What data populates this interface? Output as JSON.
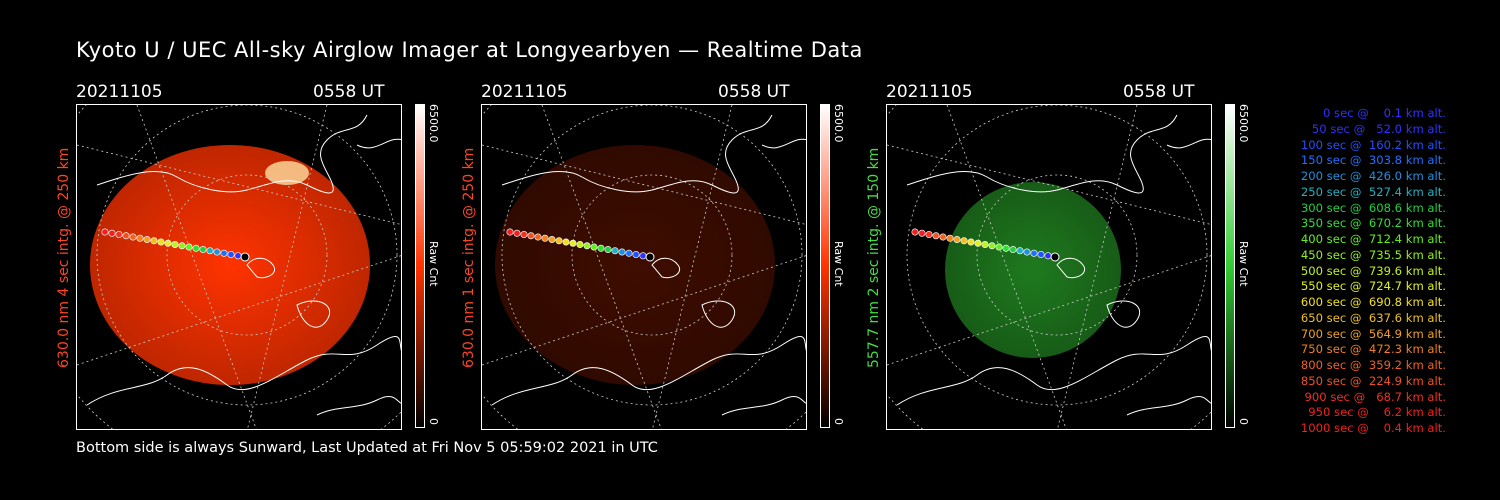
{
  "title": "Kyoto U / UEC All-sky Airglow Imager at Longyearbyen — Realtime Data",
  "footer": "Bottom side is always Sunward, Last Updated at Fri Nov  5 05:59:02 2021 in UTC",
  "panels": [
    {
      "date": "20211105",
      "time": "0558 UT",
      "ylabel": "630.0 nm 4 sec intg. @ 250 km",
      "cbar_max": "6500.0",
      "cbar_min": "0",
      "cbar_unit": "Raw Cnt",
      "color": "#ff3300",
      "brightness": 1.0
    },
    {
      "date": "20211105",
      "time": "0558 UT",
      "ylabel": "630.0 nm 1 sec intg. @ 250 km",
      "cbar_max": "6500.0",
      "cbar_min": "0",
      "cbar_unit": "Raw Cnt",
      "color": "#ff3300",
      "brightness": 0.25
    },
    {
      "date": "20211105",
      "time": "0558 UT",
      "ylabel": "557.7 nm 2 sec intg. @ 150 km",
      "cbar_max": "6500.0",
      "cbar_min": "0",
      "cbar_unit": "Raw Cnt",
      "color": "#33cc33",
      "brightness": 0.6
    }
  ],
  "legend": [
    {
      "text": "   0 sec @    0.1 km alt.",
      "color": "#3030ff"
    },
    {
      "text": "  50 sec @   52.0 km alt.",
      "color": "#3030ff"
    },
    {
      "text": " 100 sec @  160.2 km alt.",
      "color": "#2050ff"
    },
    {
      "text": " 150 sec @  303.8 km alt.",
      "color": "#2070ff"
    },
    {
      "text": " 200 sec @  426.0 km alt.",
      "color": "#2090e0"
    },
    {
      "text": " 250 sec @  527.4 km alt.",
      "color": "#20b0c0"
    },
    {
      "text": " 300 sec @  608.6 km alt.",
      "color": "#20d040"
    },
    {
      "text": " 350 sec @  670.2 km alt.",
      "color": "#30e030"
    },
    {
      "text": " 400 sec @  712.4 km alt.",
      "color": "#60f020"
    },
    {
      "text": " 450 sec @  735.5 km alt.",
      "color": "#90f020"
    },
    {
      "text": " 500 sec @  739.6 km alt.",
      "color": "#c0f020"
    },
    {
      "text": " 550 sec @  724.7 km alt.",
      "color": "#e0f020"
    },
    {
      "text": " 600 sec @  690.8 km alt.",
      "color": "#f0e020"
    },
    {
      "text": " 650 sec @  637.6 km alt.",
      "color": "#f0c020"
    },
    {
      "text": " 700 sec @  564.9 km alt.",
      "color": "#f0a020"
    },
    {
      "text": " 750 sec @  472.3 km alt.",
      "color": "#f08020"
    },
    {
      "text": " 800 sec @  359.2 km alt.",
      "color": "#f06020"
    },
    {
      "text": " 850 sec @  224.9 km alt.",
      "color": "#f05020"
    },
    {
      "text": " 900 sec @   68.7 km alt.",
      "color": "#f03020"
    },
    {
      "text": " 950 sec @    6.2 km alt.",
      "color": "#f02020"
    },
    {
      "text": "1000 sec @    0.4 km alt.",
      "color": "#f02020"
    }
  ]
}
